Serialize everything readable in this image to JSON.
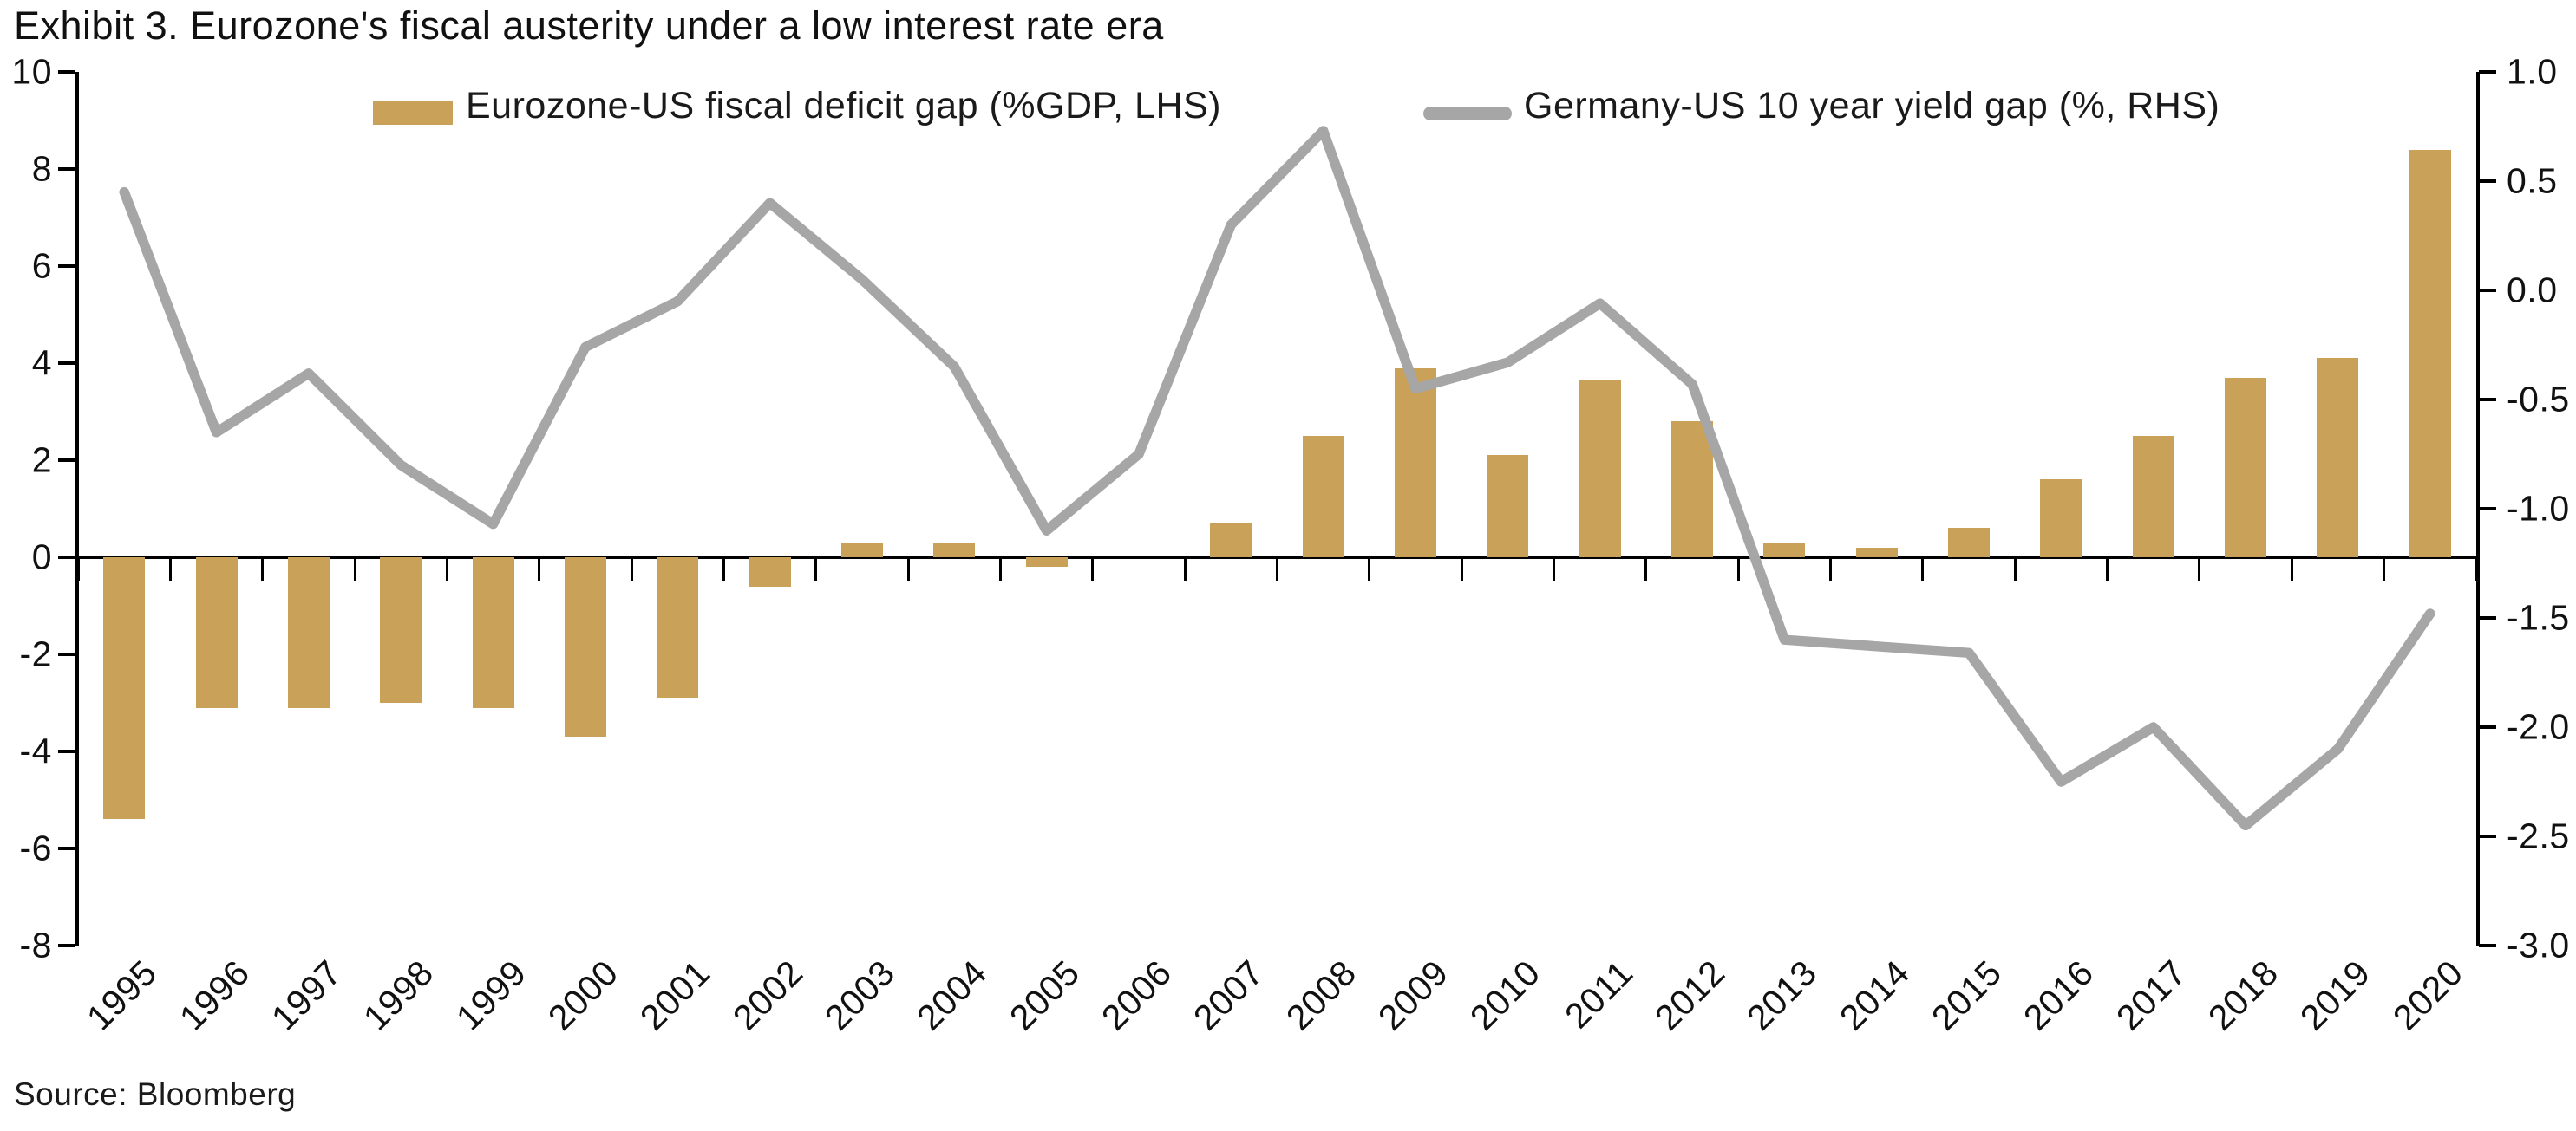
{
  "title": "Exhibit 3. Eurozone's fiscal austerity under a low interest rate era",
  "source": "Source: Bloomberg",
  "colors": {
    "bar": "#C9A158",
    "line": "#A6A6A6",
    "axis": "#000000",
    "text": "#111111"
  },
  "chart_data": {
    "type": "combo",
    "title": "Exhibit 3. Eurozone's fiscal austerity under a low interest rate era",
    "categories": [
      "1995",
      "1996",
      "1997",
      "1998",
      "1999",
      "2000",
      "2001",
      "2002",
      "2003",
      "2004",
      "2005",
      "2006",
      "2007",
      "2008",
      "2009",
      "2010",
      "2011",
      "2012",
      "2013",
      "2014",
      "2015",
      "2016",
      "2017",
      "2018",
      "2019",
      "2020"
    ],
    "series": [
      {
        "name": "Eurozone-US fiscal deficit gap (%GDP, LHS)",
        "type": "bar",
        "axis": "left",
        "color": "#C9A158",
        "values": [
          -5.4,
          -3.1,
          -3.1,
          -3.0,
          -3.1,
          -3.7,
          -2.9,
          -0.6,
          0.3,
          0.3,
          -0.2,
          0.0,
          0.7,
          2.5,
          3.9,
          2.1,
          3.65,
          2.8,
          0.3,
          0.2,
          0.6,
          1.6,
          2.5,
          3.7,
          4.1,
          8.4
        ]
      },
      {
        "name": "Germany-US 10 year yield gap (%, RHS)",
        "type": "line",
        "axis": "right",
        "color": "#A6A6A6",
        "values": [
          0.45,
          -0.65,
          -0.38,
          -0.8,
          -1.07,
          -0.26,
          -0.05,
          0.4,
          0.05,
          -0.35,
          -1.1,
          -0.75,
          0.3,
          0.73,
          -0.45,
          -0.33,
          -0.06,
          -0.43,
          -1.6,
          -1.63,
          -1.66,
          -2.25,
          -2.0,
          -2.45,
          -2.1,
          -1.48
        ]
      }
    ],
    "left_axis": {
      "min": -8,
      "max": 10,
      "step": 2,
      "tick_labels": [
        "10",
        "8",
        "6",
        "4",
        "2",
        "0",
        "-2",
        "-4",
        "-6",
        "-8"
      ]
    },
    "right_axis": {
      "min": -3,
      "max": 1,
      "step": 0.5,
      "tick_labels": [
        "1.0",
        "0.5",
        "0.0",
        "-0.5",
        "-1.0",
        "-1.5",
        "-2.0",
        "-2.5",
        "-3.0"
      ]
    },
    "legend_position": "top",
    "grid": false,
    "source": "Source: Bloomberg"
  }
}
